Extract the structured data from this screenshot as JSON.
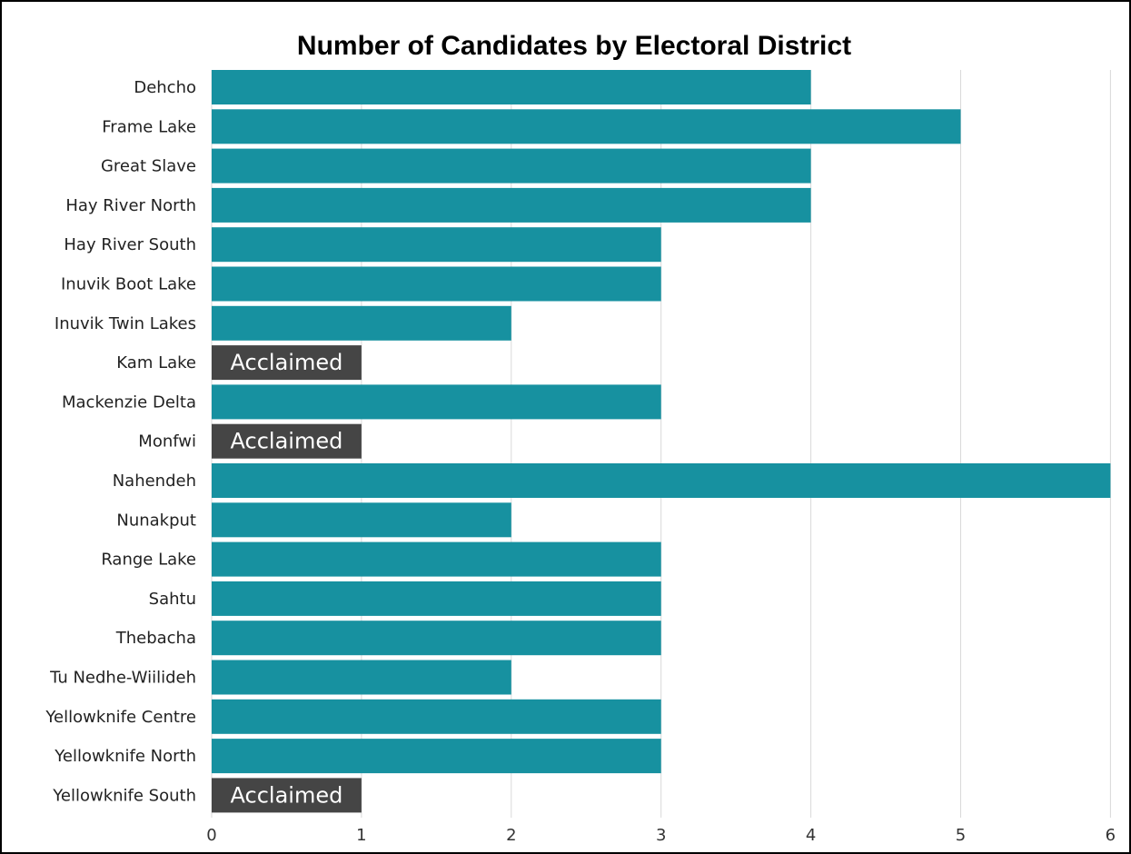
{
  "chart_data": {
    "type": "bar",
    "orientation": "horizontal",
    "title": "Number of Candidates by Electoral District",
    "xlabel": "",
    "ylabel": "",
    "xlim": [
      0,
      6
    ],
    "x_ticks": [
      "0",
      "1",
      "2",
      "3",
      "4",
      "5",
      "6"
    ],
    "grid": "vertical",
    "categories": [
      "Dehcho",
      "Frame Lake",
      "Great Slave",
      "Hay River North",
      "Hay River South",
      "Inuvik Boot Lake",
      "Inuvik Twin Lakes",
      "Kam Lake",
      "Mackenzie Delta",
      "Monfwi",
      "Nahendeh",
      "Nunakput",
      "Range Lake",
      "Sahtu",
      "Thebacha",
      "Tu Nedhe-Wiilideh",
      "Yellowknife Centre",
      "Yellowknife North",
      "Yellowknife South"
    ],
    "values": [
      4,
      5,
      4,
      4,
      3,
      3,
      2,
      1,
      3,
      1,
      6,
      2,
      3,
      3,
      3,
      2,
      3,
      3,
      1
    ],
    "bar_labels": [
      "",
      "",
      "",
      "",
      "",
      "",
      "",
      "Acclaimed",
      "",
      "Acclaimed",
      "",
      "",
      "",
      "",
      "",
      "",
      "",
      "",
      "Acclaimed"
    ],
    "colors": {
      "contested": "#1791a0",
      "acclaimed": "#454545",
      "grid": "#d9d9d9"
    }
  }
}
